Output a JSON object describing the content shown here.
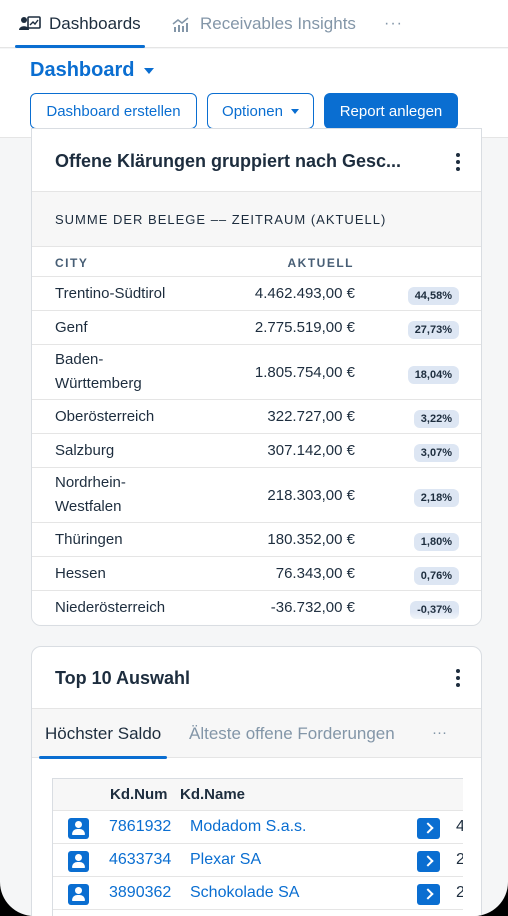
{
  "top_tabs": {
    "active": {
      "label": "Dashboards",
      "icon": "dashboard-icon"
    },
    "second": {
      "label": "Receivables Insights",
      "icon": "chart-icon"
    },
    "more": "···"
  },
  "header": {
    "title": "Dashboard",
    "buttons": {
      "create": "Dashboard erstellen",
      "options": "Optionen",
      "report": "Report anlegen"
    }
  },
  "card1": {
    "title": "Offene Klärungen gruppiert nach Gesc...",
    "subtitle": "SUMME DER BELEGE –– ZEITRAUM (AKTUELL)",
    "columns": {
      "city": "CITY",
      "current": "AKTUELL"
    },
    "rows": [
      {
        "city": "Trentino-Südtirol",
        "amount": "4.462.493,00 €",
        "pct": "44,58%"
      },
      {
        "city": "Genf",
        "amount": "2.775.519,00 €",
        "pct": "27,73%"
      },
      {
        "city": "Baden-\nWürttemberg",
        "amount": "1.805.754,00 €",
        "pct": "18,04%"
      },
      {
        "city": "Oberösterreich",
        "amount": "322.727,00 €",
        "pct": "3,22%"
      },
      {
        "city": "Salzburg",
        "amount": "307.142,00 €",
        "pct": "3,07%"
      },
      {
        "city": "Nordrhein-\nWestfalen",
        "amount": "218.303,00 €",
        "pct": "2,18%"
      },
      {
        "city": "Thüringen",
        "amount": "180.352,00 €",
        "pct": "1,80%"
      },
      {
        "city": "Hessen",
        "amount": "76.343,00 €",
        "pct": "0,76%"
      },
      {
        "city": "Niederösterreich",
        "amount": "-36.732,00 €",
        "pct": "-0,37%"
      }
    ]
  },
  "card2": {
    "title": "Top 10 Auswahl",
    "tabs": {
      "active": "Höchster Saldo",
      "second": "Älteste offene Forderungen",
      "more": "···"
    },
    "columns": {
      "num": "Kd.Num",
      "name": "Kd.Name"
    },
    "rows": [
      {
        "num": "7861932",
        "name": "Modadom S.a.s.",
        "trunc": "4"
      },
      {
        "num": "4633734",
        "name": "Plexar SA",
        "trunc": "2"
      },
      {
        "num": "3890362",
        "name": "Schokolade SA",
        "trunc": "2"
      }
    ]
  },
  "colors": {
    "accent": "#0a6ed1",
    "badge": "#dde6f3",
    "text": "#1d2d3e",
    "muted": "#8396a8"
  }
}
